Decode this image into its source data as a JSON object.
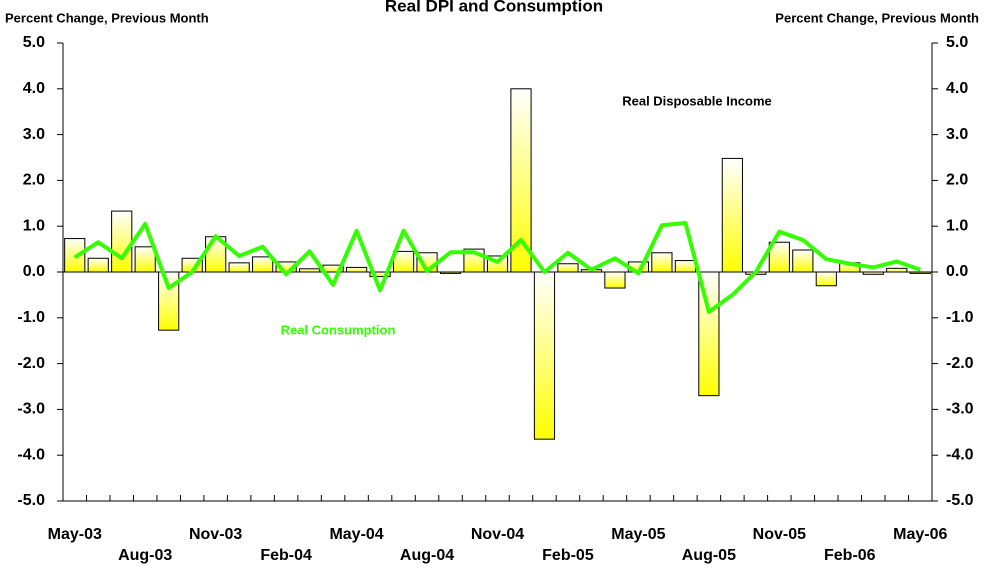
{
  "chart_data": {
    "type": "bar-line",
    "title": "Real DPI and Consumption",
    "y_label": "Percent Change, Previous Month",
    "y2_label": "Percent Change, Previous Month",
    "annotations": [
      "Real Disposable Income",
      "Real Consumption"
    ],
    "categories": [
      "May-03",
      null,
      null,
      "Aug-03",
      null,
      null,
      "Nov-03",
      null,
      null,
      "Feb-04",
      null,
      null,
      "May-04",
      null,
      null,
      "Aug-04",
      null,
      null,
      "Nov-04",
      null,
      null,
      "Feb-05",
      null,
      null,
      "May-05",
      null,
      null,
      "Aug-05",
      null,
      null,
      "Nov-05",
      null,
      null,
      "Feb-06",
      null,
      null,
      "May-06"
    ],
    "series": [
      {
        "name": "Real Disposable Income",
        "kind": "bar",
        "color": "#ffff00",
        "values": [
          0.73,
          0.3,
          1.33,
          0.55,
          -1.27,
          0.3,
          0.77,
          0.2,
          0.33,
          0.22,
          0.07,
          0.15,
          0.1,
          -0.1,
          0.45,
          0.42,
          -0.03,
          0.5,
          0.35,
          4.0,
          -3.65,
          0.18,
          0.05,
          -0.35,
          0.22,
          0.42,
          0.25,
          -2.7,
          2.48,
          -0.05,
          0.65,
          0.48,
          -0.3,
          0.2,
          -0.05,
          0.08,
          -0.03
        ]
      },
      {
        "name": "Real Consumption",
        "kind": "line",
        "color": "#33ff00",
        "values": [
          0.32,
          0.65,
          0.3,
          1.05,
          -0.35,
          0.0,
          0.78,
          0.35,
          0.55,
          -0.05,
          0.45,
          -0.28,
          0.9,
          -0.4,
          0.9,
          0.02,
          0.43,
          0.43,
          0.22,
          0.7,
          0.0,
          0.42,
          0.05,
          0.3,
          -0.03,
          1.02,
          1.07,
          -0.87,
          -0.5,
          0.0,
          0.88,
          0.7,
          0.28,
          0.18,
          0.1,
          0.23,
          0.05
        ]
      }
    ],
    "ylim": [
      -5,
      5
    ],
    "yticks": [
      {
        "value": -5,
        "label": "-5.0"
      },
      {
        "value": -4,
        "label": "-4.0"
      },
      {
        "value": -3,
        "label": "-3.0"
      },
      {
        "value": -2,
        "label": "-2.0"
      },
      {
        "value": -1,
        "label": "-1.0"
      },
      {
        "value": 0,
        "label": "0.0"
      },
      {
        "value": 1,
        "label": "1.0"
      },
      {
        "value": 2,
        "label": "2.0"
      },
      {
        "value": 3,
        "label": "3.0"
      },
      {
        "value": 4,
        "label": "4.0"
      },
      {
        "value": 5,
        "label": "5.0"
      }
    ],
    "y2lim": [
      -5,
      5
    ],
    "y2ticks": [
      {
        "value": -5,
        "label": "-5.0"
      },
      {
        "value": -4,
        "label": "-4.0"
      },
      {
        "value": -3,
        "label": "-3.0"
      },
      {
        "value": -2,
        "label": "-2.0"
      },
      {
        "value": -1,
        "label": "-1.0"
      },
      {
        "value": 0,
        "label": "0.0"
      },
      {
        "value": 1,
        "label": "1.0"
      },
      {
        "value": 2,
        "label": "2.0"
      },
      {
        "value": 3,
        "label": "3.0"
      },
      {
        "value": 4,
        "label": "4.0"
      },
      {
        "value": 5,
        "label": "5.0"
      }
    ]
  }
}
